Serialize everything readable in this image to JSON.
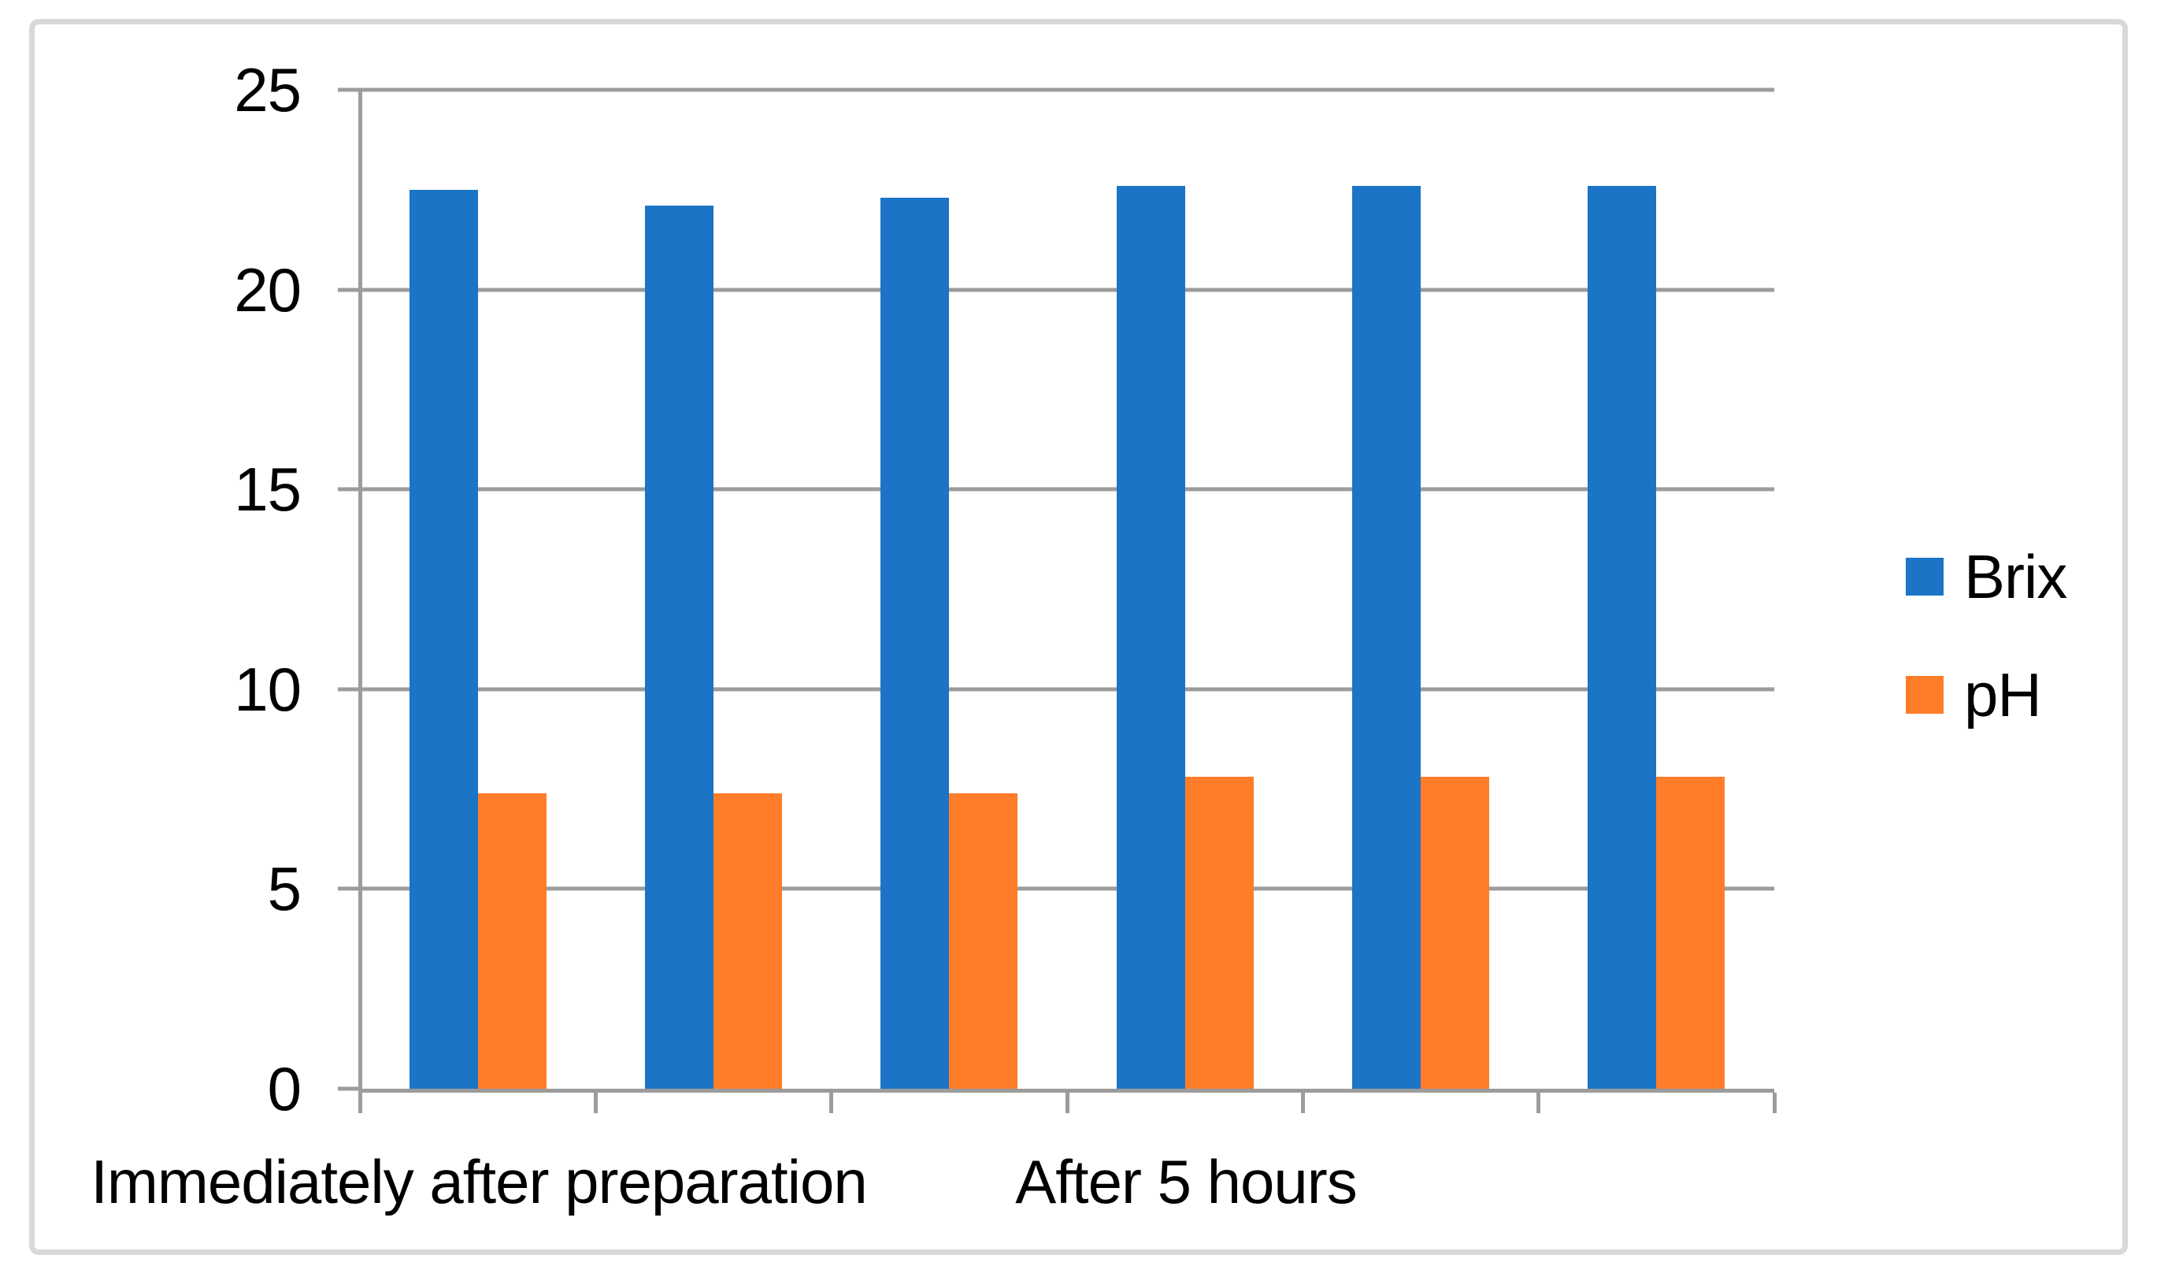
{
  "chart_data": {
    "type": "bar",
    "title": "",
    "xlabel": "",
    "ylabel": "",
    "x_axis": {
      "group_labels": [
        "Immediately after preparation",
        "After 5 hours"
      ],
      "slots_per_group": 3,
      "total_slots": 6
    },
    "series": [
      {
        "name": "Brix",
        "color": "#1B74C5",
        "values": [
          22.5,
          22.1,
          22.3,
          22.6,
          22.6,
          22.6
        ]
      },
      {
        "name": "pH",
        "color": "#FF7D28",
        "values": [
          7.4,
          7.4,
          7.4,
          7.8,
          7.8,
          7.8
        ]
      }
    ],
    "ylim": [
      0,
      25
    ],
    "yticks": [
      0,
      5,
      10,
      15,
      20,
      25
    ],
    "grid": true,
    "legend_position": "right"
  },
  "colors": {
    "brix_blue": "#1B74C5",
    "ph_orange": "#FF7D28",
    "axis_gray": "#9C9C9C",
    "frame_gray": "#D9D9D9",
    "text": "#000000"
  }
}
